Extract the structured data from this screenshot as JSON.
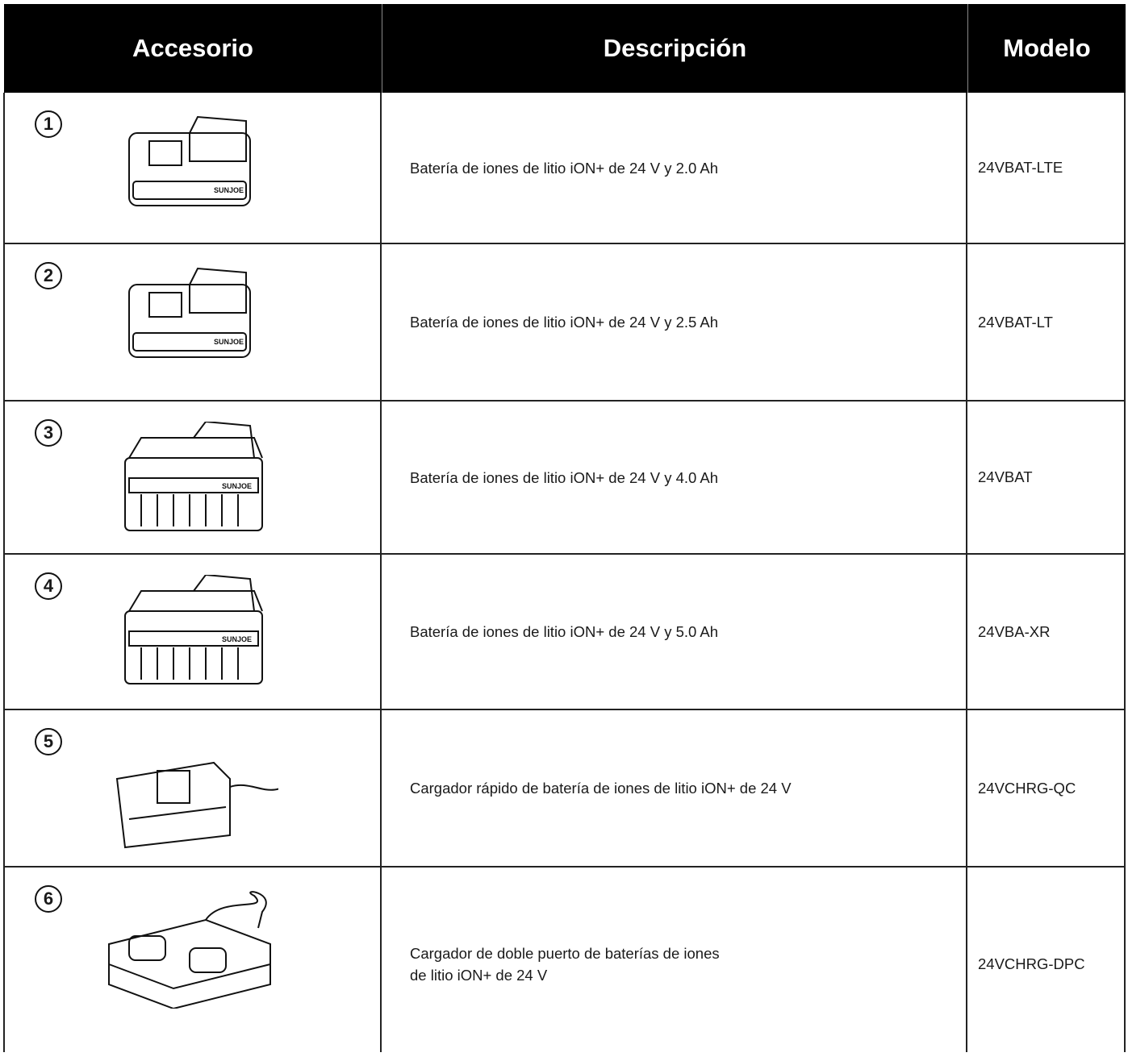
{
  "header": {
    "columns": [
      "Accesorio",
      "Descripción",
      "Modelo"
    ]
  },
  "table": {
    "rows": [
      {
        "number": "1",
        "description": [
          "Batería de iones de litio iON+ de 24 V y 2.0 Ah"
        ],
        "model": "24VBAT-LTE"
      },
      {
        "number": "2",
        "description": [
          "Batería de iones de litio iON+ de 24 V y 2.5 Ah"
        ],
        "model": "24VBAT-LT"
      },
      {
        "number": "3",
        "description": [
          "Batería de iones de litio iON+ de 24 V y 4.0 Ah"
        ],
        "model": "24VBAT"
      },
      {
        "number": "4",
        "description": [
          "Batería de iones de litio iON+ de 24 V y 5.0 Ah"
        ],
        "model": "24VBA-XR"
      },
      {
        "number": "5",
        "description": [
          "Cargador rápido de batería de iones de litio iON+ de 24 V"
        ],
        "model": "24VCHRG-QC"
      },
      {
        "number": "6",
        "description": [
          "Cargador de doble puerto de baterías de iones",
          "de litio iON+ de 24 V"
        ],
        "model": "24VCHRG-DPC"
      }
    ]
  }
}
